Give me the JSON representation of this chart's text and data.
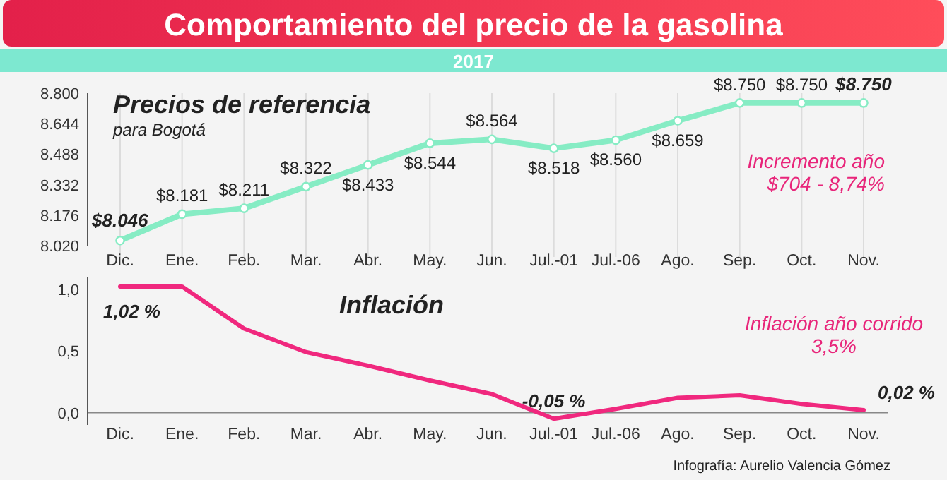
{
  "chart_data": [
    {
      "type": "line",
      "title": "Comportamiento del precio de la gasolina",
      "subtitle": "2017",
      "categories": [
        "Dic.",
        "Ene.",
        "Feb.",
        "Mar.",
        "Abr.",
        "May.",
        "Jun.",
        "Jul.-01",
        "Jul.-06",
        "Ago.",
        "Sep.",
        "Oct.",
        "Nov."
      ],
      "series": [
        {
          "color": "#86ecc4",
          "values": [
            8046,
            8181,
            8211,
            8322,
            8433,
            8544,
            8564,
            8518,
            8560,
            8659,
            8750,
            8750,
            8750
          ],
          "value_labels": [
            "$8.046",
            "$8.181",
            "$8.211",
            "$8.322",
            "$8.433",
            "$8.544",
            "$8.564",
            "$8.518",
            "$8.560",
            "$8.659",
            "$8.750",
            "$8.750",
            "$8.750"
          ]
        }
      ],
      "ylim": [
        8020,
        8800
      ],
      "yticks": [
        {
          "value": 8020,
          "label": "8.020"
        },
        {
          "value": 8176,
          "label": "8.176"
        },
        {
          "value": 8332,
          "label": "8.332"
        },
        {
          "value": 8488,
          "label": "8.488"
        },
        {
          "value": 8644,
          "label": "8.644"
        },
        {
          "value": 8800,
          "label": "8.800"
        }
      ],
      "grid": "x",
      "marker": "circle",
      "annotations": [
        "Precios de referencia",
        "para Bogotá",
        {
          "text": "Incremento año\n$704 - 8,74%"
        }
      ]
    },
    {
      "type": "line",
      "title": "Inflación",
      "categories": [
        "Dic.",
        "Ene.",
        "Feb.",
        "Mar.",
        "Abr.",
        "May.",
        "Jun.",
        "Jul.-01",
        "Jul.-06",
        "Ago.",
        "Sep.",
        "Oct.",
        "Nov."
      ],
      "series": [
        {
          "color": "#f0287e",
          "values": [
            1.02,
            1.02,
            0.68,
            0.49,
            0.38,
            0.26,
            0.15,
            -0.05,
            0.03,
            0.12,
            0.14,
            0.07,
            0.02
          ],
          "value_labels": [
            "1,02 %",
            null,
            null,
            null,
            null,
            null,
            null,
            "-0,05 %",
            null,
            null,
            null,
            null,
            "0,02 %"
          ]
        }
      ],
      "ylim": [
        -0.1,
        1.1
      ],
      "yticks": [
        {
          "value": 0,
          "label": "0,0"
        },
        {
          "value": 0.5,
          "label": "0,5"
        },
        {
          "value": 1,
          "label": "1,0"
        }
      ],
      "grid": false,
      "marker": "none",
      "annotations": [
        {
          "text": "Inflación año corrido\n3,5%"
        },
        "Infografía: Aurelio Valencia Gómez"
      ]
    }
  ]
}
